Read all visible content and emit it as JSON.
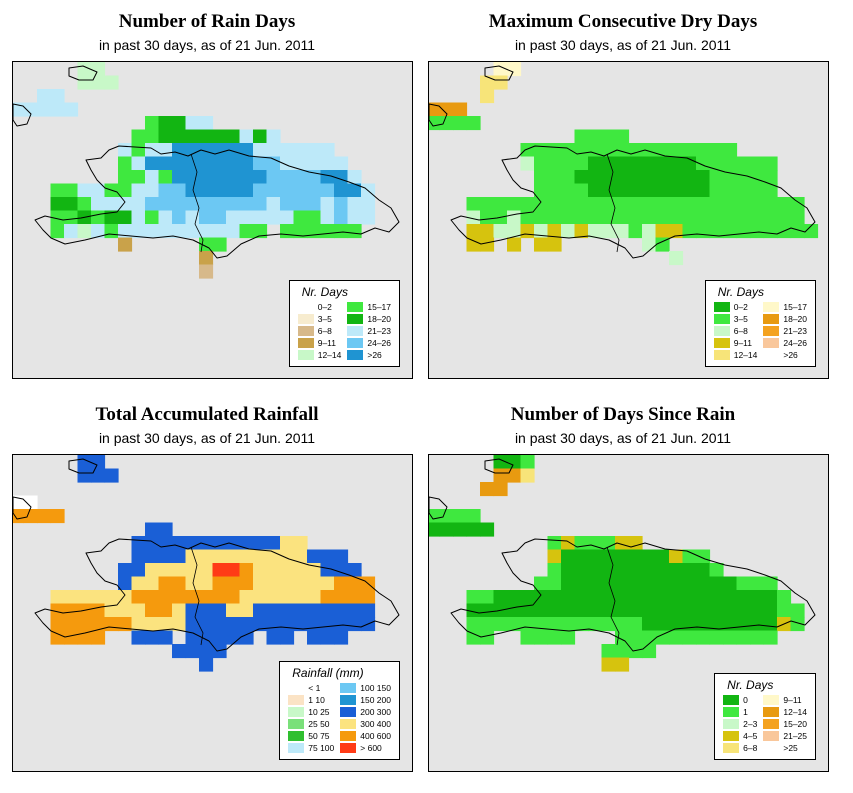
{
  "panels": [
    {
      "id": "rain-days",
      "title": "Number of Rain Days",
      "subtitle": "in past 30 days, as of  21 Jun. 2011",
      "legend": {
        "title": "Nr. Days",
        "items": [
          {
            "label": "0–2",
            "color": "#ffffff"
          },
          {
            "label": "3–5",
            "color": "#f7eccf"
          },
          {
            "label": "6–8",
            "color": "#d7b98a"
          },
          {
            "label": "9–11",
            "color": "#c9a24a"
          },
          {
            "label": "12–14",
            "color": "#c8f8c8"
          },
          {
            "label": "15–17",
            "color": "#3fe83f"
          },
          {
            "label": "18–20",
            "color": "#12b512"
          },
          {
            "label": "21–23",
            "color": "#bde9f9"
          },
          {
            "label": "24–26",
            "color": "#6cc8f3"
          },
          {
            "label": ">26",
            "color": "#1f94d2"
          }
        ]
      },
      "grid": [
        "........................",
        ".......................",
        "......",
        "",
        "",
        "",
        "",
        "",
        "",
        "",
        "",
        "",
        "",
        ""
      ]
    },
    {
      "id": "max-consecutive-dry",
      "title": "Maximum Consecutive Dry Days",
      "subtitle": "in past 30 days, as of  21 Jun. 2011",
      "legend": {
        "title": "Nr. Days",
        "items": [
          {
            "label": "0–2",
            "color": "#12b512"
          },
          {
            "label": "3–5",
            "color": "#3fe83f"
          },
          {
            "label": "6–8",
            "color": "#c8f8c8"
          },
          {
            "label": "9–11",
            "color": "#d6c30e"
          },
          {
            "label": "12–14",
            "color": "#f7e479"
          },
          {
            "label": "15–17",
            "color": "#fff8c9"
          },
          {
            "label": "18–20",
            "color": "#e89a10"
          },
          {
            "label": "21–23",
            "color": "#f4a21f"
          },
          {
            "label": "24–26",
            "color": "#f9c79b"
          },
          {
            "label": ">26",
            "color": "#ffffff"
          }
        ]
      }
    },
    {
      "id": "total-rainfall",
      "title": "Total Accumulated Rainfall",
      "subtitle": "in past 30 days, as of  21 Jun. 2011",
      "legend": {
        "title": "Rainfall (mm)",
        "items": [
          {
            "label": "< 1",
            "color": "#ffffff"
          },
          {
            "label": "1   10",
            "color": "#fbe3c5"
          },
          {
            "label": "10   25",
            "color": "#c8f8c8"
          },
          {
            "label": "25   50",
            "color": "#7ae07a"
          },
          {
            "label": "50   75",
            "color": "#2fbf2f"
          },
          {
            "label": "75   100",
            "color": "#bde9f9"
          },
          {
            "label": "100   150",
            "color": "#6cc8f3"
          },
          {
            "label": "150   200",
            "color": "#1f94d2"
          },
          {
            "label": "200   300",
            "color": "#1a5fd6"
          },
          {
            "label": "300   400",
            "color": "#fbe37f"
          },
          {
            "label": "400   600",
            "color": "#f59a0d"
          },
          {
            "label": "> 600",
            "color": "#ff3b16"
          }
        ]
      }
    },
    {
      "id": "days-since-rain",
      "title": "Number of Days Since Rain",
      "subtitle": "in past 30 days, as of  21 Jun. 2011",
      "legend": {
        "title": "Nr. Days",
        "items": [
          {
            "label": "0",
            "color": "#12b512"
          },
          {
            "label": "1",
            "color": "#3fe83f"
          },
          {
            "label": "2–3",
            "color": "#c8f8c8"
          },
          {
            "label": "4–5",
            "color": "#d6c30e"
          },
          {
            "label": "6–8",
            "color": "#f7e479"
          },
          {
            "label": "9–11",
            "color": "#fff8c9"
          },
          {
            "label": "12–14",
            "color": "#e89a10"
          },
          {
            "label": "15–20",
            "color": "#f4a21f"
          },
          {
            "label": "21–25",
            "color": "#f9c79b"
          },
          {
            "label": ">25",
            "color": "#ffffff"
          }
        ]
      }
    }
  ]
}
